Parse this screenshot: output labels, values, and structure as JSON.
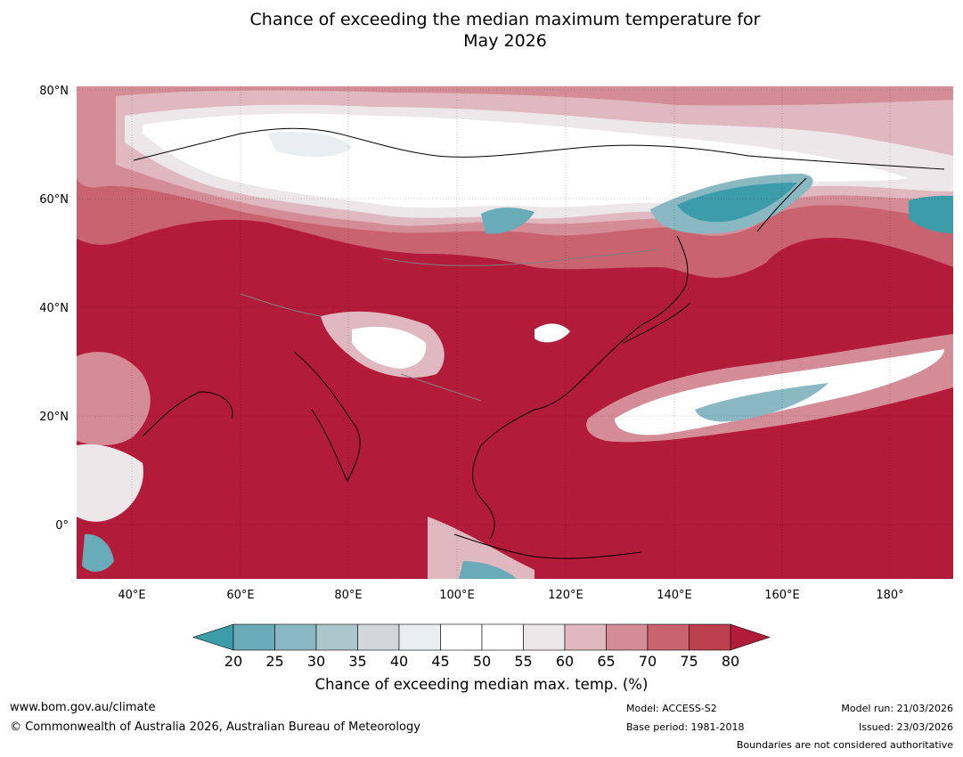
{
  "title": {
    "line1": "Chance of exceeding the median maximum temperature for",
    "line2": "May 2026"
  },
  "map": {
    "lat_ticks": [
      "80°N",
      "60°N",
      "40°N",
      "20°N",
      "0°"
    ],
    "lon_ticks": [
      "40°E",
      "60°E",
      "80°E",
      "100°E",
      "120°E",
      "140°E",
      "160°E",
      "180°"
    ]
  },
  "colorbar": {
    "ticks": [
      "20",
      "25",
      "30",
      "35",
      "40",
      "45",
      "50",
      "55",
      "60",
      "65",
      "70",
      "75",
      "80"
    ],
    "colors": [
      "#6aabb9",
      "#89b8c3",
      "#abc6cb",
      "#d1d7d9",
      "#e9eff1",
      "#ffffff",
      "#ffffff",
      "#ece7e9",
      "#e0b8bf",
      "#d48c97",
      "#c9636f",
      "#bd404f"
    ],
    "under_color": "#3d9ca9",
    "over_color": "#b31b3a",
    "label": "Chance of exceeding median max. temp. (%)"
  },
  "footer": {
    "website": "www.bom.gov.au/climate",
    "copyright": "© Commonwealth of Australia 2026, Australian Bureau of Meteorology",
    "model": "Model: ACCESS-S2",
    "base_period": "Base period: 1981-2018",
    "model_run": "Model run: 21/03/2026",
    "issued": "Issued: 23/03/2026",
    "disclaimer": "Boundaries are not considered authoritative"
  }
}
